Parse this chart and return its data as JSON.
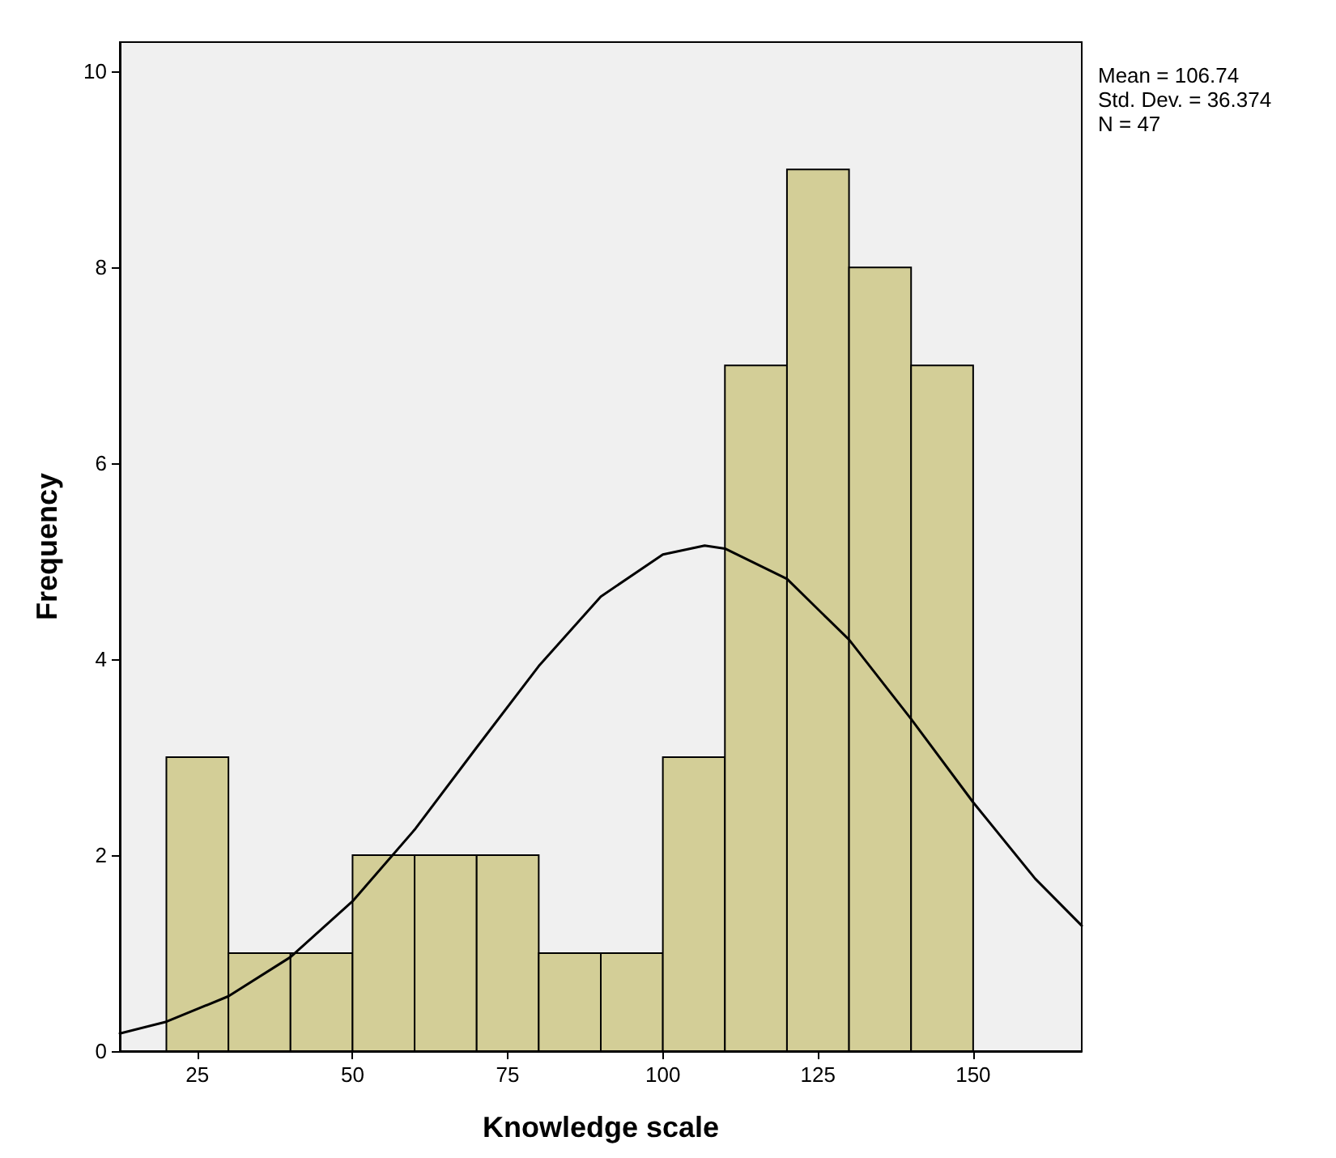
{
  "chart_data": {
    "type": "histogram",
    "xlabel": "Knowledge scale",
    "ylabel": "Frequency",
    "bins": [
      20,
      30,
      40,
      50,
      60,
      70,
      80,
      90,
      100,
      110,
      120,
      130,
      140,
      150
    ],
    "values": [
      3,
      1,
      1,
      2,
      2,
      2,
      1,
      1,
      3,
      7,
      9,
      8,
      7
    ],
    "color": "#d3ce97",
    "series": [
      {
        "type": "line",
        "color": "#000000",
        "x": [
          12.5,
          20,
          30,
          40,
          50,
          60,
          70,
          80,
          90,
          100,
          106.74,
          110,
          120,
          130,
          140,
          150,
          160,
          167.5
        ],
        "values": [
          0.18,
          0.3,
          0.56,
          0.96,
          1.53,
          2.26,
          3.1,
          3.93,
          4.64,
          5.07,
          5.16,
          5.13,
          4.82,
          4.2,
          3.39,
          2.54,
          1.76,
          1.28
        ]
      }
    ],
    "xlim": [
      12.5,
      167.5
    ],
    "ylim": [
      0,
      10.3
    ],
    "xticks": [
      25,
      50,
      75,
      100,
      125,
      150
    ],
    "yticks": [
      0,
      2,
      4,
      6,
      8,
      10
    ],
    "grid": false,
    "marker": "none",
    "line_style": "solid",
    "annotations": [
      "Mean = 106.74",
      "Std. Dev. = 36.374",
      "N = 47"
    ]
  }
}
